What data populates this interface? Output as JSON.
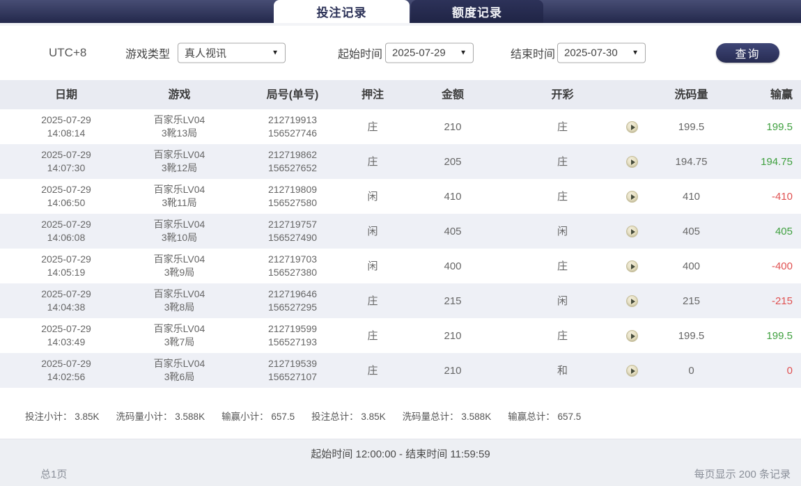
{
  "tabs": [
    {
      "label": "投注记录",
      "active": true
    },
    {
      "label": "额度记录",
      "active": false
    }
  ],
  "filters": {
    "timezone": "UTC+8",
    "game_type_label": "游戏类型",
    "game_type_value": "真人视讯",
    "start_label": "起始时间",
    "start_value": "2025-07-29",
    "end_label": "结束时间",
    "end_value": "2025-07-30",
    "query_label": "查询",
    "dropdown_arrow": "▼"
  },
  "table": {
    "headers": [
      "日期",
      "游戏",
      "局号(单号)",
      "押注",
      "金额",
      "开彩",
      "洗码量",
      "输赢"
    ],
    "rows": [
      {
        "date": "2025-07-29",
        "time": "14:08:14",
        "game": "百家乐LV04",
        "round": "3靴13局",
        "bet_id": "212719913",
        "order_id": "156527746",
        "bet": "庄",
        "amount": "210",
        "result": "庄",
        "rolling": "199.5",
        "winloss": "199.5",
        "winloss_color": "green"
      },
      {
        "date": "2025-07-29",
        "time": "14:07:30",
        "game": "百家乐LV04",
        "round": "3靴12局",
        "bet_id": "212719862",
        "order_id": "156527652",
        "bet": "庄",
        "amount": "205",
        "result": "庄",
        "rolling": "194.75",
        "winloss": "194.75",
        "winloss_color": "green"
      },
      {
        "date": "2025-07-29",
        "time": "14:06:50",
        "game": "百家乐LV04",
        "round": "3靴11局",
        "bet_id": "212719809",
        "order_id": "156527580",
        "bet": "闲",
        "amount": "410",
        "result": "庄",
        "rolling": "410",
        "winloss": "-410",
        "winloss_color": "red"
      },
      {
        "date": "2025-07-29",
        "time": "14:06:08",
        "game": "百家乐LV04",
        "round": "3靴10局",
        "bet_id": "212719757",
        "order_id": "156527490",
        "bet": "闲",
        "amount": "405",
        "result": "闲",
        "rolling": "405",
        "winloss": "405",
        "winloss_color": "green"
      },
      {
        "date": "2025-07-29",
        "time": "14:05:19",
        "game": "百家乐LV04",
        "round": "3靴9局",
        "bet_id": "212719703",
        "order_id": "156527380",
        "bet": "闲",
        "amount": "400",
        "result": "庄",
        "rolling": "400",
        "winloss": "-400",
        "winloss_color": "red"
      },
      {
        "date": "2025-07-29",
        "time": "14:04:38",
        "game": "百家乐LV04",
        "round": "3靴8局",
        "bet_id": "212719646",
        "order_id": "156527295",
        "bet": "庄",
        "amount": "215",
        "result": "闲",
        "rolling": "215",
        "winloss": "-215",
        "winloss_color": "red"
      },
      {
        "date": "2025-07-29",
        "time": "14:03:49",
        "game": "百家乐LV04",
        "round": "3靴7局",
        "bet_id": "212719599",
        "order_id": "156527193",
        "bet": "庄",
        "amount": "210",
        "result": "庄",
        "rolling": "199.5",
        "winloss": "199.5",
        "winloss_color": "green"
      },
      {
        "date": "2025-07-29",
        "time": "14:02:56",
        "game": "百家乐LV04",
        "round": "3靴6局",
        "bet_id": "212719539",
        "order_id": "156527107",
        "bet": "庄",
        "amount": "210",
        "result": "和",
        "rolling": "0",
        "winloss": "0",
        "winloss_color": "red"
      }
    ]
  },
  "summary": {
    "items": [
      "投注小计： 3.85K",
      "洗码量小计： 3.588K",
      "输赢小计： 657.5",
      "投注总计： 3.85K",
      "洗码量总计： 3.588K",
      "输赢总计： 657.5"
    ]
  },
  "footer": {
    "time_range": "起始时间 12:00:00 - 结束时间 11:59:59",
    "page_info": "总1页",
    "per_page": "每页显示 200 条记录"
  },
  "colors": {
    "win": "#3fa03f",
    "loss": "#e05151",
    "accent_navy": "#2b3157"
  }
}
